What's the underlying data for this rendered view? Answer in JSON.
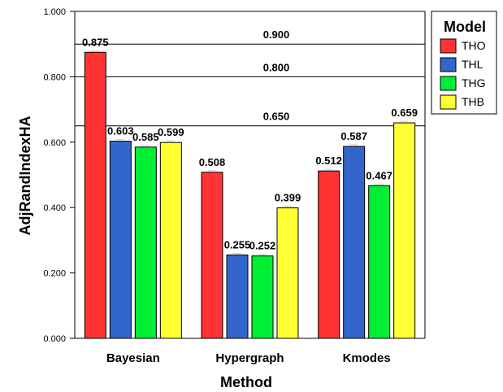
{
  "chart_data": {
    "type": "bar",
    "categories": [
      "Bayesian",
      "Hypergraph",
      "Kmodes"
    ],
    "series": [
      {
        "name": "THO",
        "color": "#ff3333",
        "values": [
          0.875,
          0.508,
          0.512
        ],
        "labels": [
          "0.875",
          "0.508",
          "0.512"
        ]
      },
      {
        "name": "THL",
        "color": "#3366cc",
        "values": [
          0.603,
          0.255,
          0.587
        ],
        "labels": [
          "0.603",
          "0.255",
          "0.587"
        ]
      },
      {
        "name": "THG",
        "color": "#00ee33",
        "values": [
          0.585,
          0.252,
          0.467
        ],
        "labels": [
          "0.585",
          "0.252",
          "0.467"
        ]
      },
      {
        "name": "THB",
        "color": "#ffff33",
        "values": [
          0.599,
          0.399,
          0.659
        ],
        "labels": [
          "0.599",
          "0.399",
          "0.659"
        ]
      }
    ],
    "reference_lines": [
      {
        "value": 0.9,
        "label": "0.900"
      },
      {
        "value": 0.8,
        "label": "0.800"
      },
      {
        "value": 0.65,
        "label": "0.650"
      }
    ],
    "xlabel": "Method",
    "ylabel": "AdjRandIndexHA",
    "ylim": [
      0,
      1
    ],
    "yticks": [
      0.0,
      0.2,
      0.4,
      0.6,
      0.8,
      1.0
    ],
    "ytick_labels": [
      "0.000",
      "0.200",
      "0.400",
      "0.600",
      "0.800",
      "1.000"
    ],
    "legend_title": "Model",
    "legend_position": "top-right",
    "grid": false
  }
}
